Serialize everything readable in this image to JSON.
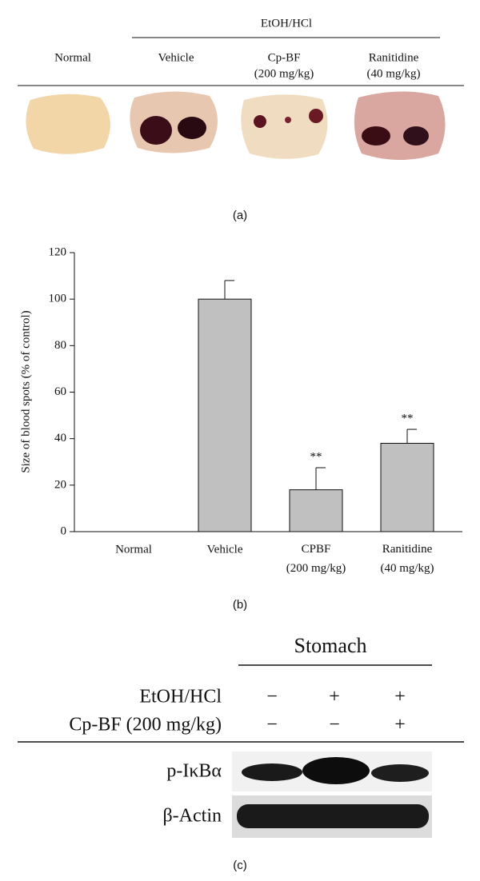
{
  "panel_a": {
    "header": "EtOH/HCl",
    "columns": [
      "Normal",
      "Vehicle",
      "Cp-BF",
      "Ranitidine"
    ],
    "doses": [
      null,
      null,
      "(200 mg/kg)",
      "(40 mg/kg)"
    ],
    "caption": "(a)"
  },
  "chart_data": {
    "type": "bar",
    "ylabel": "Size of blood spots (% of control)",
    "categories": [
      "Normal",
      "Vehicle",
      "CPBF (200 mg/kg)",
      "Ranitidine (40 mg/kg)"
    ],
    "values": [
      0,
      100,
      18,
      38
    ],
    "errors": [
      null,
      8,
      9.5,
      6
    ],
    "annotations": [
      null,
      null,
      "**",
      "**"
    ],
    "color": "#c0c0c0",
    "ylim": [
      0,
      120
    ],
    "yticks": [
      0,
      20,
      40,
      60,
      80,
      100,
      120
    ],
    "caption": "(b)"
  },
  "panel_c": {
    "header": "Stomach",
    "rows": [
      {
        "label": "EtOH/HCl",
        "signs": [
          "−",
          "+",
          "+"
        ]
      },
      {
        "label": "Cp-BF (200 mg/kg)",
        "signs": [
          "−",
          "−",
          "+"
        ]
      }
    ],
    "blots": [
      "p-IκBα",
      "β-Actin"
    ],
    "caption": "(c)"
  }
}
